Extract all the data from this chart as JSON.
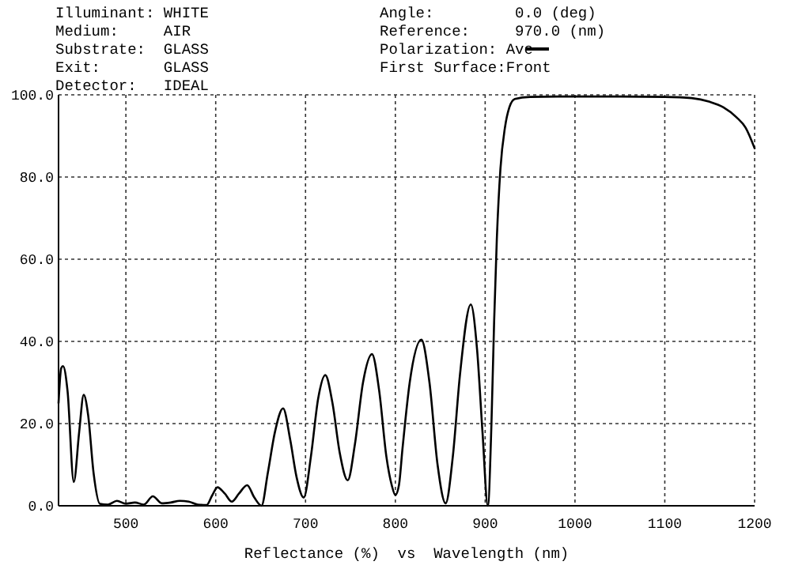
{
  "chart_data": {
    "type": "line",
    "xlabel": "Reflectance (%)  vs  Wavelength (nm)",
    "annotations": [
      "Illuminant: WHITE",
      "Medium:     AIR",
      "Substrate:  GLASS",
      "Exit:       GLASS",
      "Detector:   IDEAL",
      "Angle:         0.0 (deg)",
      "Reference:     970.0 (nm)",
      "Polarization: Ave",
      "First Surface:Front"
    ],
    "x": [
      425,
      428,
      430,
      435,
      442,
      448,
      453,
      458,
      464,
      471,
      480,
      490,
      500,
      510,
      520,
      530,
      540,
      550,
      560,
      570,
      580,
      590,
      596,
      602,
      610,
      618,
      626,
      635,
      643,
      651,
      658,
      666,
      675,
      683,
      690,
      698,
      706,
      714,
      722,
      730,
      738,
      747,
      755,
      764,
      774,
      782,
      790,
      796,
      800,
      804,
      808,
      816,
      829,
      838,
      847,
      856,
      864,
      872,
      884,
      891,
      897,
      903,
      907,
      910,
      913,
      917,
      922,
      927,
      933,
      950,
      1000,
      1050,
      1100,
      1130,
      1150,
      1165,
      1180,
      1190,
      1200
    ],
    "series": [
      {
        "color": "#000000",
        "values": [
          25,
          33.5,
          34,
          28,
          5.8,
          18,
          27,
          22,
          8,
          0.5,
          0.3,
          1.2,
          0.5,
          0.8,
          0.3,
          2.3,
          0.6,
          0.8,
          1.2,
          1.0,
          0.3,
          0.2,
          2.5,
          4.5,
          3,
          1,
          3,
          5,
          2,
          0,
          8,
          18,
          23.7,
          16,
          7,
          2,
          12,
          26,
          31.8,
          25,
          13,
          6.2,
          15,
          30,
          36.9,
          28,
          12,
          5,
          2.6,
          5,
          14,
          30,
          40.4,
          30,
          10,
          0.6,
          12,
          32,
          49,
          38,
          18,
          0,
          20,
          45,
          65,
          82,
          92,
          97,
          99,
          99.5,
          99.6,
          99.6,
          99.5,
          99.2,
          98.3,
          97,
          94.5,
          92,
          87
        ]
      }
    ],
    "xlim": [
      425,
      1200
    ],
    "ylim": [
      0,
      100
    ],
    "xticks": [
      500,
      600,
      700,
      800,
      900,
      1000,
      1100,
      1200
    ],
    "yticks": [
      {
        "value": 0,
        "label": "0.0"
      },
      {
        "value": 20,
        "label": "20.0"
      },
      {
        "value": 40,
        "label": "40.0"
      },
      {
        "value": 60,
        "label": "60.0"
      },
      {
        "value": 80,
        "label": "80.0"
      },
      {
        "value": 100,
        "label": "100.0"
      }
    ],
    "grid": true,
    "line_style": "solid"
  }
}
